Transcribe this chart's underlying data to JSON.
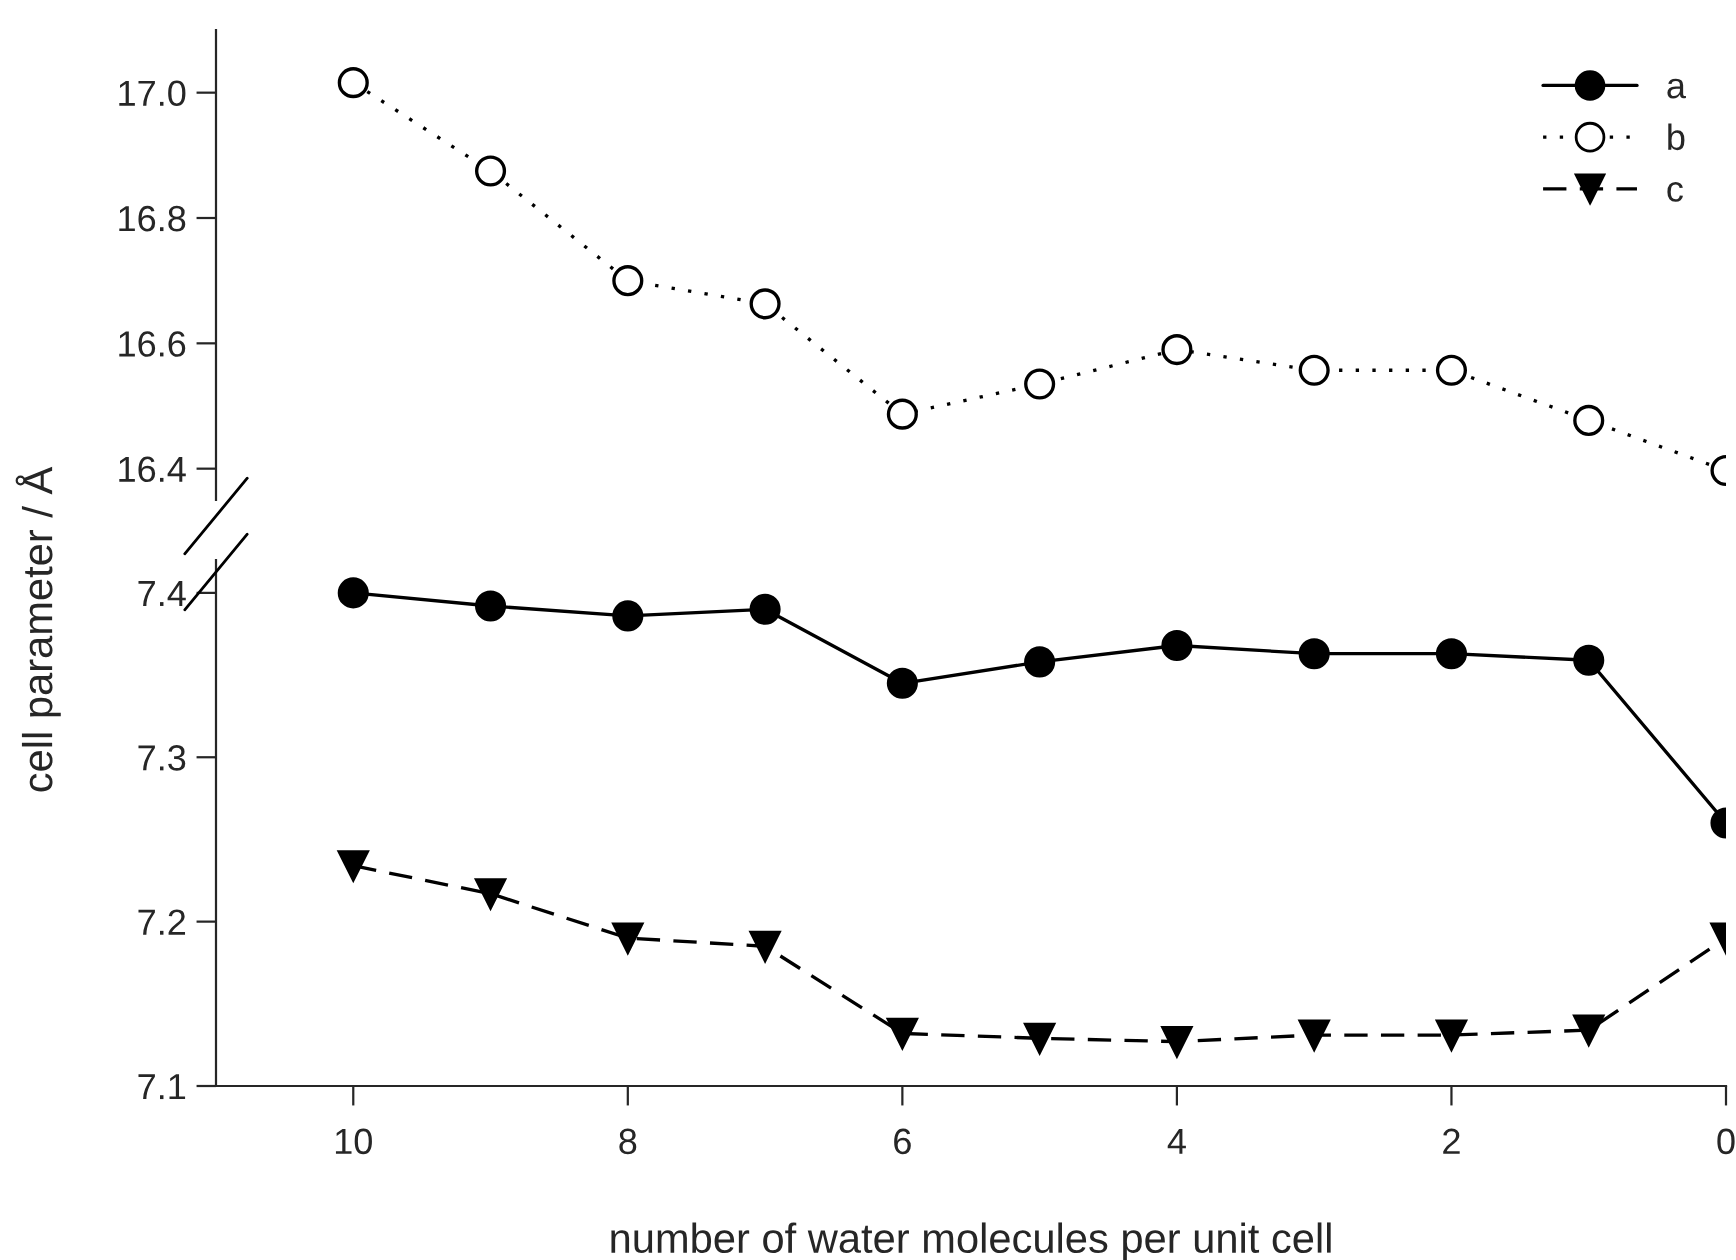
{
  "chart_data": [
    {
      "type": "line",
      "x": [
        10,
        9,
        8,
        7,
        6,
        5,
        4,
        3,
        2,
        1,
        0
      ],
      "xlim": [
        11,
        0
      ],
      "ylim": [
        16.35,
        17.1
      ],
      "yticks": [
        16.4,
        16.6,
        16.8,
        {
          "value": 17.0,
          "label": "17.0"
        }
      ],
      "tick_labels": "y",
      "legend": "top right",
      "series": [
        {
          "name": "b",
          "color": "#000000",
          "marker": "circle",
          "line_style": "dotted",
          "values": [
            17.016,
            16.875,
            16.7,
            16.663,
            16.487,
            16.535,
            16.59,
            16.557,
            16.557,
            16.477,
            16.397
          ]
        }
      ]
    },
    {
      "type": "line",
      "x": [
        10,
        9,
        8,
        7,
        6,
        5,
        4,
        3,
        2,
        1,
        0
      ],
      "xlim": [
        11,
        0
      ],
      "xticks": [
        10,
        8,
        6,
        4,
        2,
        0
      ],
      "legend": "top right",
      "ylim": [
        7.1,
        7.42
      ],
      "yticks": [
        7.1,
        7.2,
        7.3,
        7.4
      ],
      "xlabel": "number of water molecules per unit cell",
      "ylabel": "cell parameter / Å",
      "series": [
        {
          "name": "a",
          "color": "#000000",
          "marker": "circle",
          "line_style": "solid",
          "values": [
            7.4,
            7.392,
            7.386,
            7.39,
            7.345,
            7.358,
            7.368,
            7.363,
            7.363,
            7.359,
            7.26
          ]
        },
        {
          "name": "c",
          "color": "#000000",
          "marker": "triangle",
          "line_style": "dashed",
          "values": [
            7.234,
            7.217,
            7.19,
            7.185,
            7.132,
            7.129,
            7.127,
            7.131,
            7.131,
            7.134,
            7.19
          ]
        }
      ]
    }
  ]
}
